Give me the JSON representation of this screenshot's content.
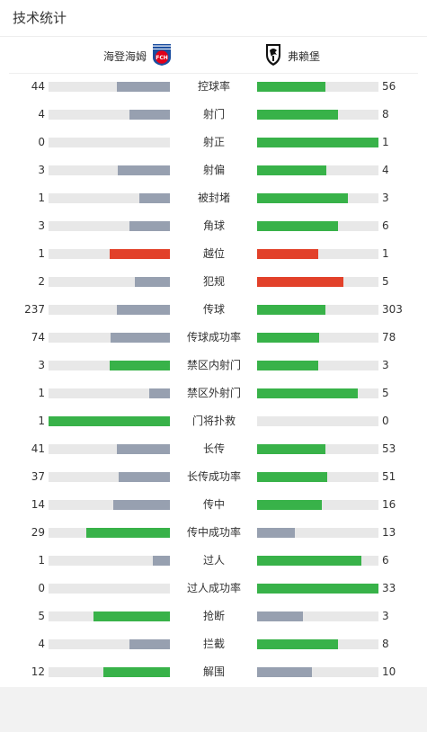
{
  "title": "技术统计",
  "home_team": {
    "name": "海登海姆",
    "logo_text": "FCH"
  },
  "away_team": {
    "name": "弗赖堡"
  },
  "colors": {
    "gray": "#97a0b0",
    "green": "#38b249",
    "red": "#e2412a",
    "track": "#e8e8e8"
  },
  "stats": [
    {
      "label": "控球率",
      "home": "44",
      "away": "56",
      "home_pct": 44,
      "away_pct": 56,
      "home_color": "gray",
      "away_color": "green"
    },
    {
      "label": "射门",
      "home": "4",
      "away": "8",
      "home_pct": 33,
      "away_pct": 67,
      "home_color": "gray",
      "away_color": "green"
    },
    {
      "label": "射正",
      "home": "0",
      "away": "1",
      "home_pct": 0,
      "away_pct": 100,
      "home_color": "gray",
      "away_color": "green"
    },
    {
      "label": "射偏",
      "home": "3",
      "away": "4",
      "home_pct": 43,
      "away_pct": 57,
      "home_color": "gray",
      "away_color": "green"
    },
    {
      "label": "被封堵",
      "home": "1",
      "away": "3",
      "home_pct": 25,
      "away_pct": 75,
      "home_color": "gray",
      "away_color": "green"
    },
    {
      "label": "角球",
      "home": "3",
      "away": "6",
      "home_pct": 33,
      "away_pct": 67,
      "home_color": "gray",
      "away_color": "green"
    },
    {
      "label": "越位",
      "home": "1",
      "away": "1",
      "home_pct": 50,
      "away_pct": 50,
      "home_color": "red",
      "away_color": "red"
    },
    {
      "label": "犯规",
      "home": "2",
      "away": "5",
      "home_pct": 29,
      "away_pct": 71,
      "home_color": "gray",
      "away_color": "red"
    },
    {
      "label": "传球",
      "home": "237",
      "away": "303",
      "home_pct": 44,
      "away_pct": 56,
      "home_color": "gray",
      "away_color": "green"
    },
    {
      "label": "传球成功率",
      "home": "74",
      "away": "78",
      "home_pct": 49,
      "away_pct": 51,
      "home_color": "gray",
      "away_color": "green"
    },
    {
      "label": "禁区内射门",
      "home": "3",
      "away": "3",
      "home_pct": 50,
      "away_pct": 50,
      "home_color": "green",
      "away_color": "green"
    },
    {
      "label": "禁区外射门",
      "home": "1",
      "away": "5",
      "home_pct": 17,
      "away_pct": 83,
      "home_color": "gray",
      "away_color": "green"
    },
    {
      "label": "门将扑救",
      "home": "1",
      "away": "0",
      "home_pct": 100,
      "away_pct": 0,
      "home_color": "green",
      "away_color": "gray"
    },
    {
      "label": "长传",
      "home": "41",
      "away": "53",
      "home_pct": 44,
      "away_pct": 56,
      "home_color": "gray",
      "away_color": "green"
    },
    {
      "label": "长传成功率",
      "home": "37",
      "away": "51",
      "home_pct": 42,
      "away_pct": 58,
      "home_color": "gray",
      "away_color": "green"
    },
    {
      "label": "传中",
      "home": "14",
      "away": "16",
      "home_pct": 47,
      "away_pct": 53,
      "home_color": "gray",
      "away_color": "green"
    },
    {
      "label": "传中成功率",
      "home": "29",
      "away": "13",
      "home_pct": 69,
      "away_pct": 31,
      "home_color": "green",
      "away_color": "gray"
    },
    {
      "label": "过人",
      "home": "1",
      "away": "6",
      "home_pct": 14,
      "away_pct": 86,
      "home_color": "gray",
      "away_color": "green"
    },
    {
      "label": "过人成功率",
      "home": "0",
      "away": "33",
      "home_pct": 0,
      "away_pct": 100,
      "home_color": "gray",
      "away_color": "green"
    },
    {
      "label": "抢断",
      "home": "5",
      "away": "3",
      "home_pct": 63,
      "away_pct": 38,
      "home_color": "green",
      "away_color": "gray"
    },
    {
      "label": "拦截",
      "home": "4",
      "away": "8",
      "home_pct": 33,
      "away_pct": 67,
      "home_color": "gray",
      "away_color": "green"
    },
    {
      "label": "解围",
      "home": "12",
      "away": "10",
      "home_pct": 55,
      "away_pct": 45,
      "home_color": "green",
      "away_color": "gray"
    }
  ]
}
